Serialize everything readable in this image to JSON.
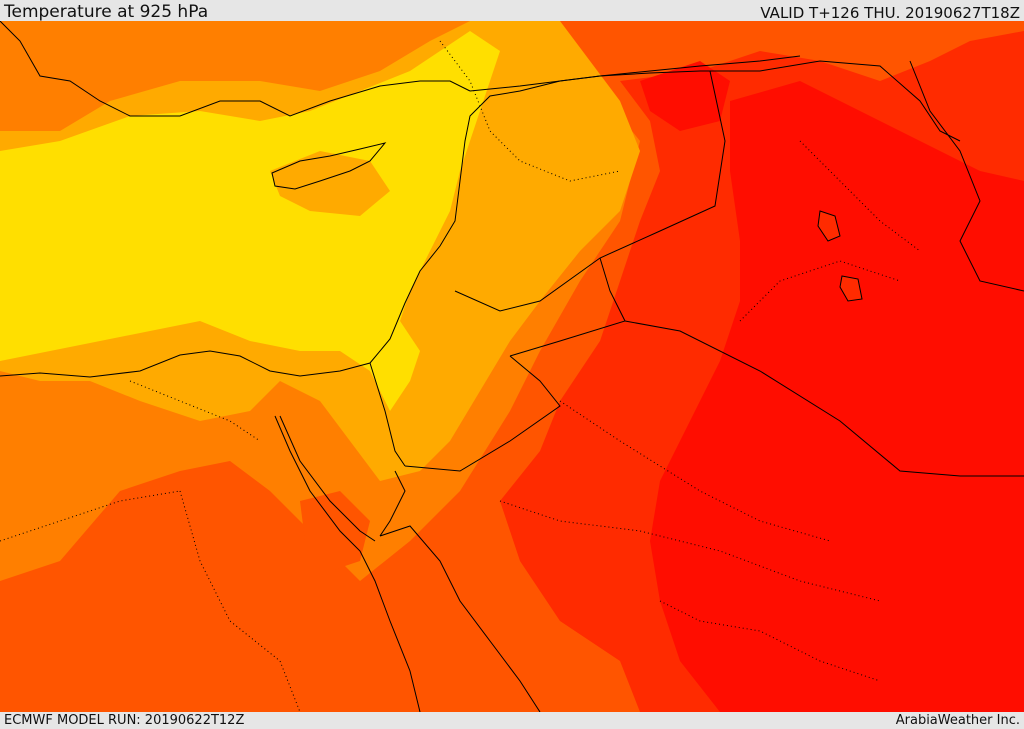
{
  "header": {
    "title": "Temperature at 925 hPa",
    "valid": "VALID T+126 THU. 20190627T18Z"
  },
  "footer": {
    "model_run": "ECMWF MODEL RUN: 20190622T12Z",
    "credit": "ArabiaWeather Inc."
  },
  "map": {
    "palette": {
      "yellow": "#ffdf00",
      "light_orange": "#ffaa00",
      "orange": "#ff7f00",
      "dark_orange": "#ff5500",
      "red_orange": "#ff2b00",
      "red": "#ff0d00"
    }
  }
}
